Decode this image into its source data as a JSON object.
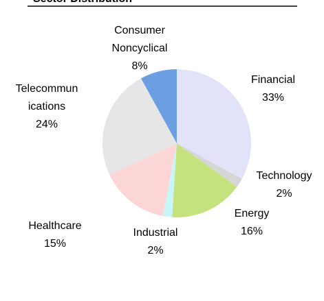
{
  "chart_data": {
    "type": "pie",
    "title": "Sector Distribution",
    "categories": [
      "Financial",
      "Technology",
      "Energy",
      "Industrial",
      "Healthcare",
      "Telecommunications",
      "Consumer Noncyclical"
    ],
    "values": [
      33,
      2,
      16,
      2,
      15,
      24,
      8
    ],
    "value_labels": [
      "33%",
      "2%",
      "16%",
      "2%",
      "15%",
      "24%",
      "8%"
    ],
    "colors": [
      "#e2e2f8",
      "#d6d6d6",
      "#c6e27e",
      "#c8f6f8",
      "#fcd6d6",
      "#e6e6e6",
      "#6c9ee2"
    ]
  }
}
